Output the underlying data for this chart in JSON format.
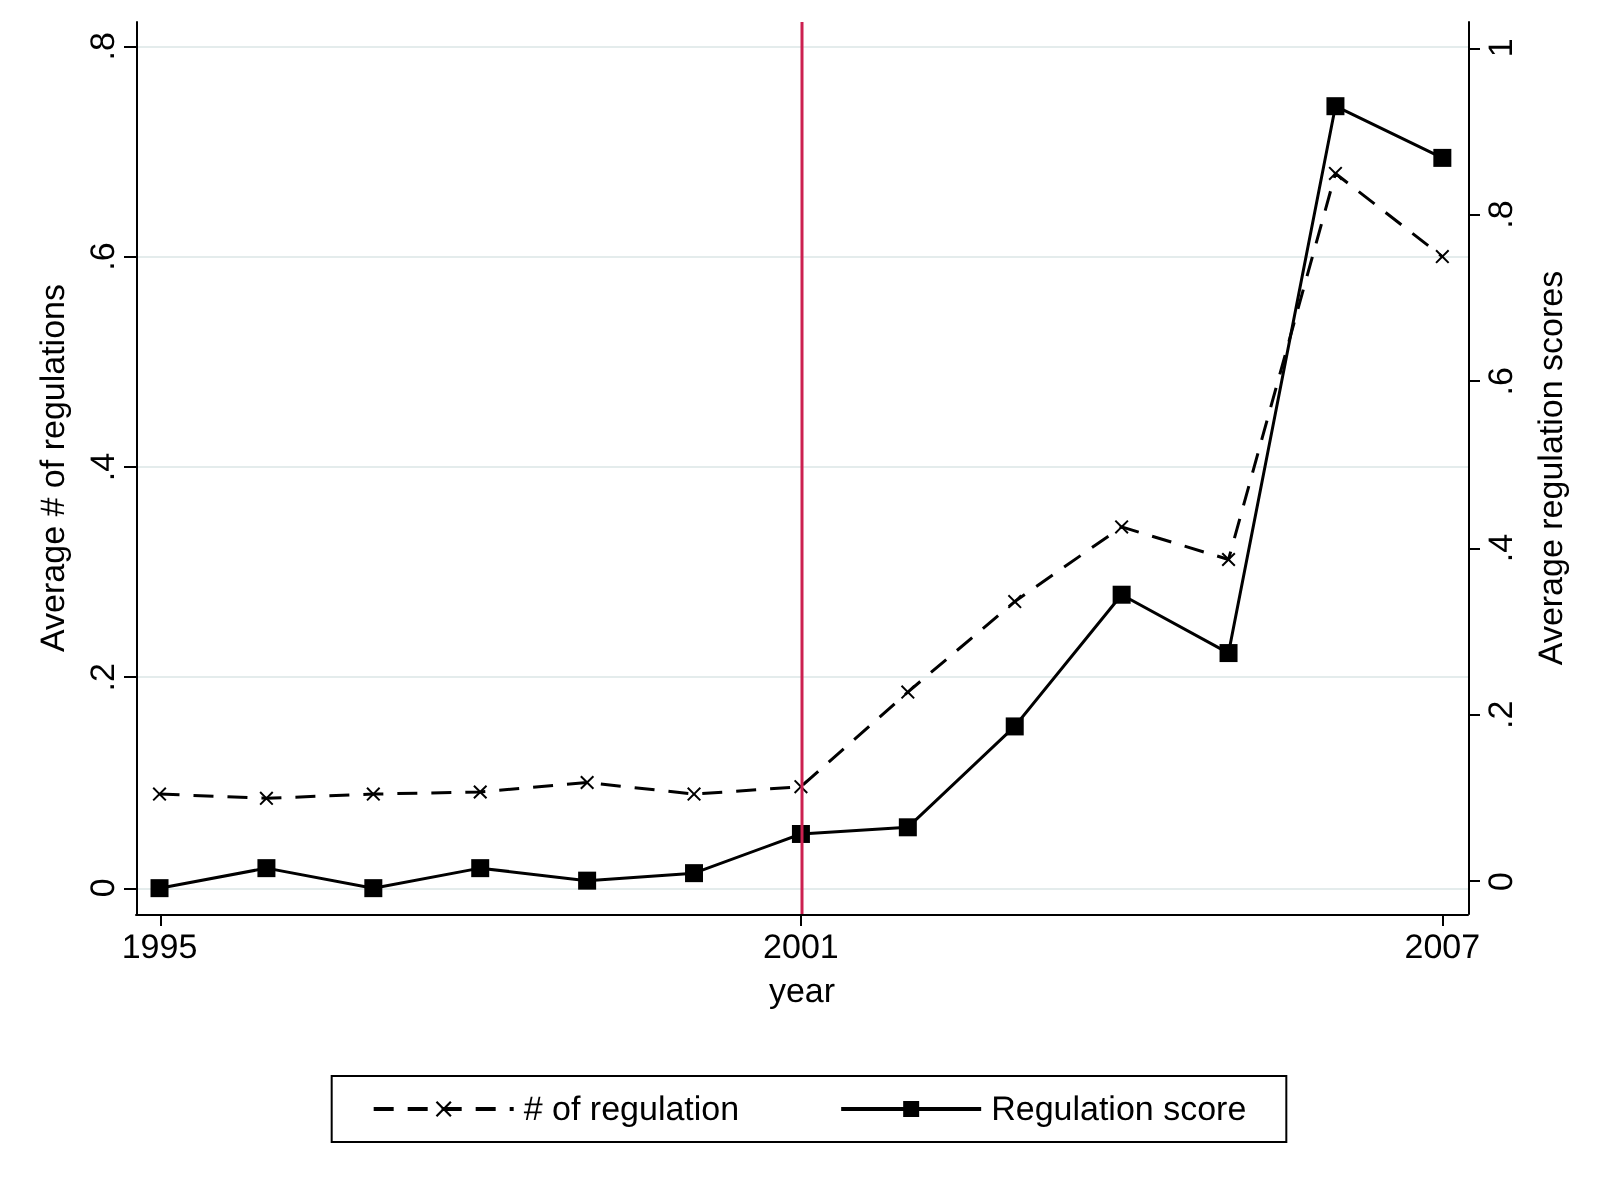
{
  "chart_data": {
    "type": "line",
    "xlabel": "year",
    "ylabel": "Average # of regulations",
    "y2label": "Average regulation scores",
    "x": [
      1995,
      1996,
      1997,
      1998,
      1999,
      2000,
      2001,
      2002,
      2003,
      2004,
      2005,
      2006,
      2007
    ],
    "series": [
      {
        "name": "# of regulation",
        "color": "#000000",
        "marker": "cross",
        "line_style": "dashed",
        "values": [
          0.089,
          0.085,
          0.089,
          0.091,
          0.1,
          0.089,
          0.096,
          0.186,
          0.272,
          0.343,
          0.312,
          0.679,
          0.6
        ]
      },
      {
        "name": "Regulation score",
        "color": "#000000",
        "marker": "square",
        "line_style": "solid",
        "axis": "y2",
        "values": [
          -0.008,
          0.016,
          -0.008,
          0.016,
          0.001,
          0.01,
          0.057,
          0.065,
          0.186,
          0.344,
          0.274,
          0.93,
          0.868
        ]
      }
    ],
    "xlim": [
      1994.78,
      2007.24
    ],
    "xticks": [
      1995,
      2001,
      2007
    ],
    "ylim": [
      -0.025,
      0.823
    ],
    "yticks": [
      0,
      {
        "value": 0.2,
        "label": ".2"
      },
      {
        "value": 0.4,
        "label": ".4"
      },
      {
        "value": 0.6,
        "label": ".6"
      },
      {
        "value": 0.8,
        "label": ".8"
      }
    ],
    "y2lim": [
      -0.039,
      1.031
    ],
    "y2ticks": [
      0,
      {
        "value": 0.2,
        "label": ".2"
      },
      {
        "value": 0.4,
        "label": ".4"
      },
      {
        "value": 0.6,
        "label": ".6"
      },
      {
        "value": 0.8,
        "label": ".8"
      },
      1
    ],
    "ref_lines": [
      {
        "axis": "x",
        "value": 2001,
        "color": "#cc2050"
      }
    ],
    "grid": "y",
    "legend": "bottom"
  }
}
